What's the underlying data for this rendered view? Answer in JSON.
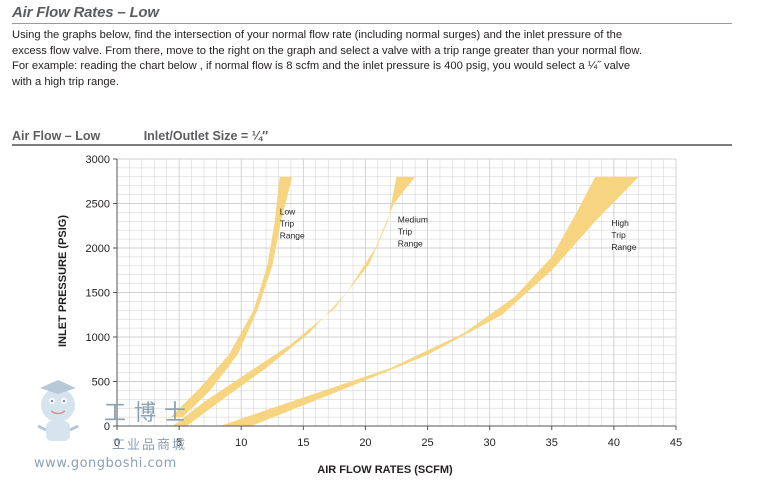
{
  "header": {
    "title": "Air Flow Rates – Low",
    "intro_line1": "Using the graphs below, find the intersection of your normal flow rate (including normal surges) and the inlet pressure of the",
    "intro_line2": "excess flow valve. From there, move to the right on the graph and select a valve with a trip range greater than your normal flow.",
    "intro_line3": "For example: reading the chart below , if normal flow is 8 scfm and the inlet pressure is 400 psig, you would select a ¼˝ valve",
    "intro_line4": "with a high trip range."
  },
  "subheader": {
    "label": "Air Flow – Low",
    "size_label": "Inlet/Outlet Size = ¼″"
  },
  "watermark": {
    "chars": "工博士",
    "sub": "工业品商城",
    "url": "www.gongboshi.com"
  },
  "colors": {
    "band_fill": "#f7d47f",
    "grid": "#cfcfcf",
    "axis": "#555555"
  },
  "chart_data": {
    "type": "area",
    "title": "Air Flow – Low  Inlet/Outlet Size = ¼″",
    "xlabel": "AIR FLOW RATES (SCFM)",
    "ylabel": "INLET PRESSURE (PSIG)",
    "xlim": [
      0,
      45
    ],
    "ylim": [
      0,
      3000
    ],
    "x_ticks": [
      0,
      5,
      10,
      15,
      20,
      25,
      30,
      35,
      40,
      45
    ],
    "x_tick_labels": [
      "0",
      "5",
      "10",
      "15",
      "20",
      "25",
      "30",
      "35",
      "40",
      "45"
    ],
    "y_ticks": [
      0,
      500,
      1000,
      1500,
      2000,
      2500,
      3000
    ],
    "y_tick_labels": [
      "0",
      "500",
      "1000",
      "1500",
      "2000",
      "2500",
      "3000"
    ],
    "grid": true,
    "series": [
      {
        "name": "Low Trip Range",
        "label_lines": [
          "Low",
          "Trip",
          "Range"
        ],
        "label_at": [
          13.1,
          2375
        ],
        "lower": [
          [
            4.3,
            100
          ],
          [
            6.5,
            400
          ],
          [
            9,
            800
          ],
          [
            11,
            1300
          ],
          [
            12.1,
            1800
          ],
          [
            12.7,
            2300
          ],
          [
            13.1,
            2800
          ]
        ],
        "upper": [
          [
            5.3,
            100
          ],
          [
            7.5,
            400
          ],
          [
            9.7,
            800
          ],
          [
            11.3,
            1300
          ],
          [
            12.5,
            1800
          ],
          [
            13.2,
            2300
          ],
          [
            14.1,
            2800
          ]
        ]
      },
      {
        "name": "Medium Trip Range",
        "label_lines": [
          "Medium",
          "Trip",
          "Range"
        ],
        "label_at": [
          22.6,
          2285
        ],
        "lower": [
          [
            4.5,
            0
          ],
          [
            7,
            270
          ],
          [
            10,
            550
          ],
          [
            14,
            920
          ],
          [
            17.5,
            1320
          ],
          [
            20.3,
            1820
          ],
          [
            21.8,
            2300
          ],
          [
            22.5,
            2800
          ]
        ],
        "upper": [
          [
            5.6,
            0
          ],
          [
            9,
            350
          ],
          [
            12,
            650
          ],
          [
            15.5,
            1050
          ],
          [
            18.5,
            1500
          ],
          [
            20.8,
            2000
          ],
          [
            22.3,
            2500
          ],
          [
            24,
            2800
          ]
        ]
      },
      {
        "name": "High Trip Range",
        "label_lines": [
          "High",
          "Trip",
          "Range"
        ],
        "label_at": [
          39.8,
          2245
        ],
        "lower": [
          [
            8.3,
            0
          ],
          [
            15,
            320
          ],
          [
            22,
            650
          ],
          [
            28,
            1050
          ],
          [
            32,
            1450
          ],
          [
            35,
            1900
          ],
          [
            37,
            2400
          ],
          [
            38.5,
            2800
          ]
        ],
        "upper": [
          [
            10.8,
            0
          ],
          [
            18,
            400
          ],
          [
            25,
            800
          ],
          [
            31,
            1250
          ],
          [
            35,
            1750
          ],
          [
            38.5,
            2300
          ],
          [
            42,
            2800
          ]
        ]
      }
    ]
  }
}
